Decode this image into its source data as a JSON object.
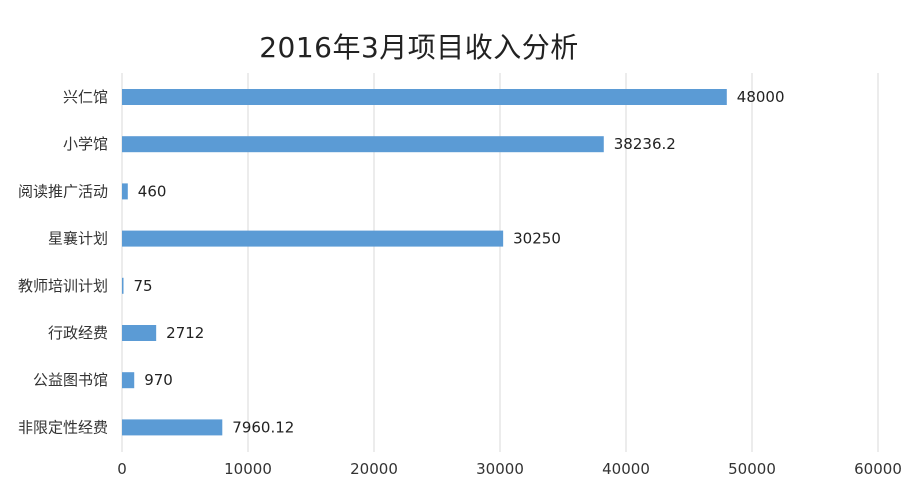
{
  "chart_data": {
    "type": "bar",
    "orientation": "horizontal",
    "title": "2016年3月项目收入分析",
    "xlabel": "",
    "ylabel": "",
    "categories": [
      "兴仁馆",
      "小学馆",
      "阅读推广活动",
      "星襄计划",
      "教师培训计划",
      "行政经费",
      "公益图书馆",
      "非限定性经费"
    ],
    "values": [
      48000,
      38236.2,
      460,
      30250,
      75,
      2712,
      970,
      7960.12
    ],
    "value_labels": [
      "48000",
      "38236.2",
      "460",
      "30250",
      "75",
      "2712",
      "970",
      "7960.12"
    ],
    "xlim": [
      0,
      60000
    ],
    "xticks": [
      0,
      10000,
      20000,
      30000,
      40000,
      50000,
      60000
    ],
    "xtick_labels": [
      "0",
      "10000",
      "20000",
      "30000",
      "40000",
      "50000",
      "60000"
    ],
    "grid": true,
    "legend": "none",
    "bar_color": "#5b9bd5",
    "grid_color": "#d9d9d9"
  }
}
